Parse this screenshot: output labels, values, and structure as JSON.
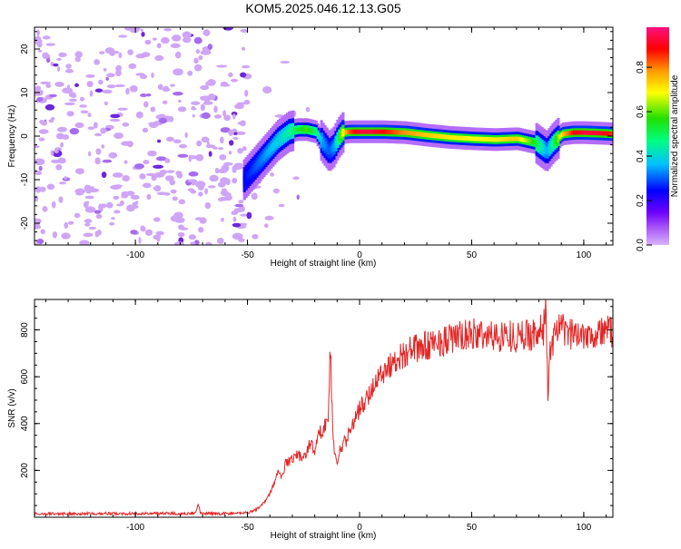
{
  "title": "KOM5.2025.046.12.13.G05",
  "colors": {
    "snr_line": "#e32626",
    "scatter_noise": "#c39bf0",
    "colorbar": [
      "#d8b4fe",
      "#6d00ff",
      "#0000ff",
      "#00c0ff",
      "#00ff80",
      "#20e000",
      "#ffff00",
      "#ff9900",
      "#ff0000",
      "#ff1080"
    ]
  },
  "chart_data": [
    {
      "type": "heatmap",
      "xlabel": "Height of straight line (km)",
      "ylabel": "Frequency (Hz)",
      "xlim": [
        -145,
        113
      ],
      "ylim": [
        -25,
        25
      ],
      "x_ticks": [
        -100,
        -50,
        0,
        50,
        100
      ],
      "y_ticks": [
        -20,
        -10,
        0,
        10,
        20
      ],
      "colorbar": {
        "label": "Normalized spectral amplitude",
        "range": [
          0,
          0.98
        ],
        "ticks": [
          0.0,
          0.2,
          0.4,
          0.6,
          0.8
        ]
      },
      "noise_region_x": [
        -145,
        -50
      ],
      "signal_ridge": {
        "x": [
          -52,
          -47,
          -42,
          -37,
          -32,
          -28,
          -24,
          -20,
          -17,
          -14,
          -12,
          -10,
          -8,
          -5,
          0,
          5,
          10,
          20,
          30,
          40,
          50,
          60,
          70,
          78,
          83,
          86,
          90,
          95,
          100,
          105,
          110,
          113
        ],
        "frequency": [
          -10,
          -7,
          -4,
          -1,
          1,
          1.5,
          1.5,
          1.0,
          -1.5,
          -3.5,
          -2.5,
          -0.5,
          0.8,
          1.0,
          1.0,
          1.0,
          1.0,
          0.8,
          0.2,
          -0.3,
          -0.6,
          -0.8,
          -0.6,
          -1.5,
          -3.5,
          -1.5,
          0.5,
          0.8,
          0.8,
          0.7,
          0.6,
          0.5
        ],
        "amplitude": [
          0.25,
          0.3,
          0.35,
          0.4,
          0.45,
          0.55,
          0.6,
          0.5,
          0.35,
          0.3,
          0.35,
          0.5,
          0.7,
          0.85,
          0.95,
          0.95,
          0.9,
          0.8,
          0.75,
          0.72,
          0.7,
          0.72,
          0.75,
          0.55,
          0.35,
          0.5,
          0.75,
          0.9,
          0.95,
          0.95,
          0.9,
          0.85
        ]
      }
    },
    {
      "type": "line",
      "xlabel": "Height of straight line (km)",
      "ylabel": "SNR (v/v)",
      "xlim": [
        -145,
        113
      ],
      "ylim": [
        0,
        930
      ],
      "x_ticks": [
        -100,
        -50,
        0,
        50,
        100
      ],
      "y_ticks": [
        200,
        400,
        600,
        800
      ],
      "series": [
        {
          "x": [
            -145,
            -130,
            -115,
            -100,
            -90,
            -80,
            -73,
            -72,
            -71,
            -65,
            -55,
            -50,
            -48,
            -45,
            -42,
            -40,
            -38,
            -36,
            -35,
            -33,
            -30,
            -28,
            -25,
            -22,
            -20,
            -18,
            -16,
            -14,
            -13,
            -12,
            -11,
            -10,
            -9,
            -8,
            -6,
            -4,
            -2,
            0,
            3,
            6,
            10,
            15,
            20,
            25,
            30,
            35,
            40,
            45,
            50,
            55,
            60,
            65,
            70,
            75,
            80,
            82,
            83,
            84,
            85,
            87,
            90,
            95,
            100,
            105,
            110,
            113
          ],
          "y": [
            15,
            15,
            16,
            15,
            17,
            16,
            18,
            60,
            16,
            15,
            17,
            20,
            25,
            40,
            70,
            100,
            150,
            200,
            160,
            230,
            250,
            270,
            250,
            320,
            280,
            360,
            380,
            420,
            740,
            360,
            260,
            240,
            280,
            300,
            330,
            380,
            420,
            460,
            500,
            560,
            620,
            660,
            700,
            720,
            730,
            750,
            760,
            770,
            780,
            780,
            770,
            780,
            770,
            780,
            790,
            800,
            920,
            520,
            700,
            790,
            800,
            780,
            790,
            780,
            800,
            790
          ]
        }
      ]
    }
  ]
}
